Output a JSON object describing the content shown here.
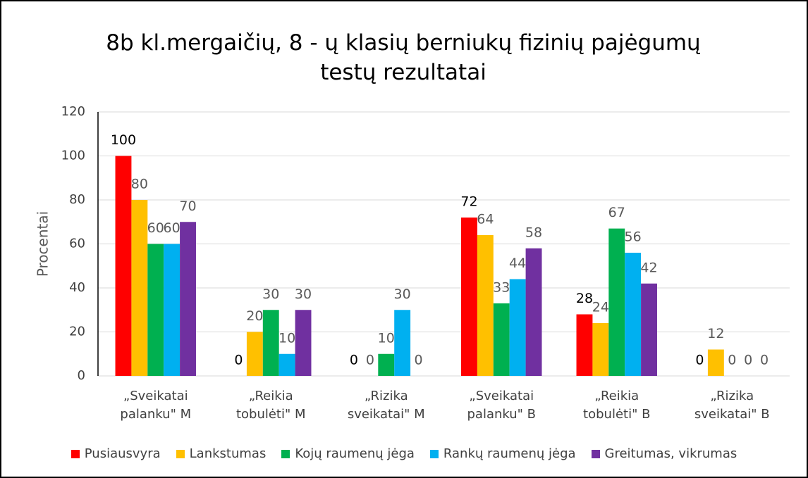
{
  "chart_data": {
    "type": "bar",
    "title": "8b kl.mergaičių, 8 - ų klasių berniukų fizinių pajėgumų testų rezultatai",
    "y_label": "Procentai",
    "categories": [
      "„Sveikatai palanku\" M",
      "„Reikia tobulėti\" M",
      "„Rizika sveikatai\" M",
      "„Sveikatai palanku\" B",
      "„Reikia tobulėti\" B",
      "„Rizika sveikatai\" B"
    ],
    "series": [
      {
        "name": "Pusiausvyra",
        "color": "#ff0000",
        "values": [
          100,
          0,
          0,
          72,
          28,
          0
        ]
      },
      {
        "name": "Lankstumas",
        "color": "#ffc000",
        "values": [
          80,
          20,
          0,
          64,
          24,
          12
        ]
      },
      {
        "name": "Kojų raumenų jėga",
        "color": "#00b050",
        "values": [
          60,
          30,
          10,
          33,
          67,
          0
        ]
      },
      {
        "name": "Rankų raumenų jėga",
        "color": "#00b0f0",
        "values": [
          60,
          10,
          30,
          44,
          56,
          0
        ]
      },
      {
        "name": "Greitumas, vikrumas",
        "color": "#7030a0",
        "values": [
          70,
          30,
          0,
          58,
          42,
          0
        ]
      }
    ],
    "ylim": [
      0,
      120
    ],
    "yticks": [
      0,
      20,
      40,
      60,
      80,
      100,
      120
    ],
    "grid": true,
    "legend": "bottom"
  }
}
